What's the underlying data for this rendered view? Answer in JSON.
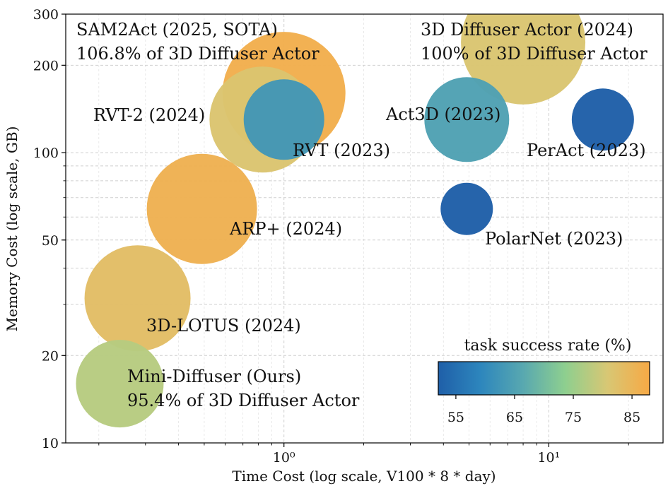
{
  "chart_data": {
    "type": "scatter",
    "subtype": "bubble",
    "xlabel": "Time Cost (log scale, V100 * 8 * day)",
    "ylabel": "Memory Cost (log scale, GB)",
    "xscale": "log",
    "yscale": "log",
    "xlim": [
      0.15,
      27
    ],
    "ylim": [
      10,
      300
    ],
    "grid": true,
    "x_ticks": [
      {
        "value": 1,
        "label": "10⁰"
      },
      {
        "value": 10,
        "label": "10¹"
      }
    ],
    "y_ticks": [
      {
        "value": 10,
        "label": "10"
      },
      {
        "value": 20,
        "label": "20"
      },
      {
        "value": 50,
        "label": "50"
      },
      {
        "value": 100,
        "label": "100"
      },
      {
        "value": 200,
        "label": "200"
      },
      {
        "value": 300,
        "label": "300"
      }
    ],
    "colorbar": {
      "title": "task success rate (%)",
      "range": [
        52,
        88
      ],
      "ticks": [
        55,
        65,
        75,
        85
      ],
      "colors": [
        "#1f5fa8",
        "#2d86bd",
        "#58a8b0",
        "#8ecf8f",
        "#d8c774",
        "#f7a945"
      ]
    },
    "points": [
      {
        "name": "SAM2Act",
        "x": 1.0,
        "y": 160,
        "success": 86.8
      },
      {
        "name": "3D Diffuser Actor",
        "x": 8.0,
        "y": 240,
        "success": 81.3
      },
      {
        "name": "RVT-2",
        "x": 0.83,
        "y": 130,
        "success": 81.4
      },
      {
        "name": "RVT",
        "x": 1.0,
        "y": 130,
        "success": 62.9
      },
      {
        "name": "Act3D",
        "x": 4.9,
        "y": 130,
        "success": 65.0
      },
      {
        "name": "PerAct",
        "x": 16.0,
        "y": 130,
        "success": 49.4
      },
      {
        "name": "PolarNet",
        "x": 4.9,
        "y": 64,
        "success": 46.4
      },
      {
        "name": "ARP+",
        "x": 0.49,
        "y": 64,
        "success": 86.0
      },
      {
        "name": "3D-LOTUS",
        "x": 0.28,
        "y": 31.5,
        "success": 83.1
      },
      {
        "name": "Mini-Diffuser",
        "x": 0.24,
        "y": 16,
        "success": 77.6
      }
    ],
    "annotations": [
      {
        "lines": [
          "SAM2Act (2025, SOTA)",
          "106.8% of 3D Diffuser Actor"
        ]
      },
      {
        "lines": [
          "3D Diffuser Actor (2024)",
          "100% of 3D Diffuser Actor"
        ]
      },
      {
        "lines": [
          "RVT-2 (2024)"
        ]
      },
      {
        "lines": [
          "RVT (2023)"
        ]
      },
      {
        "lines": [
          "Act3D (2023)"
        ]
      },
      {
        "lines": [
          "PerAct (2023)"
        ]
      },
      {
        "lines": [
          "PolarNet (2023)"
        ]
      },
      {
        "lines": [
          "ARP+ (2024)"
        ]
      },
      {
        "lines": [
          "3D-LOTUS (2024)"
        ]
      },
      {
        "lines": [
          "Mini-Diffuser (Ours)",
          "95.4% of 3D Diffuser Actor"
        ]
      }
    ]
  }
}
